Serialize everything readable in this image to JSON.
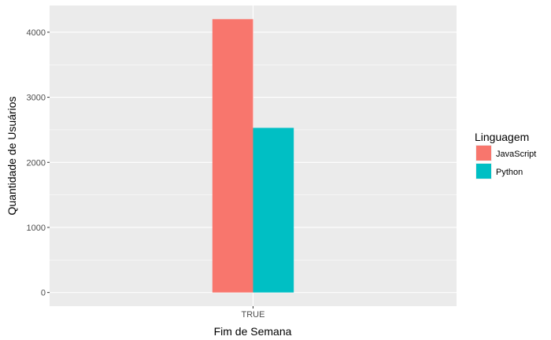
{
  "chart_data": {
    "type": "bar",
    "categories": [
      "TRUE"
    ],
    "series": [
      {
        "name": "JavaScript",
        "values": [
          4200
        ],
        "color": "#F8766D"
      },
      {
        "name": "Python",
        "values": [
          2530
        ],
        "color": "#00BFC4"
      }
    ],
    "xlabel": "Fim de Semana",
    "ylabel": "Quantidade de Usuários",
    "ylim": [
      -210,
      4410
    ],
    "yticks": [
      0,
      1000,
      2000,
      3000,
      4000
    ],
    "legend_title": "Linguagem",
    "legend_position": "right",
    "grid": true,
    "panel_background": "#EBEBEB",
    "grid_color": "#FFFFFF"
  }
}
